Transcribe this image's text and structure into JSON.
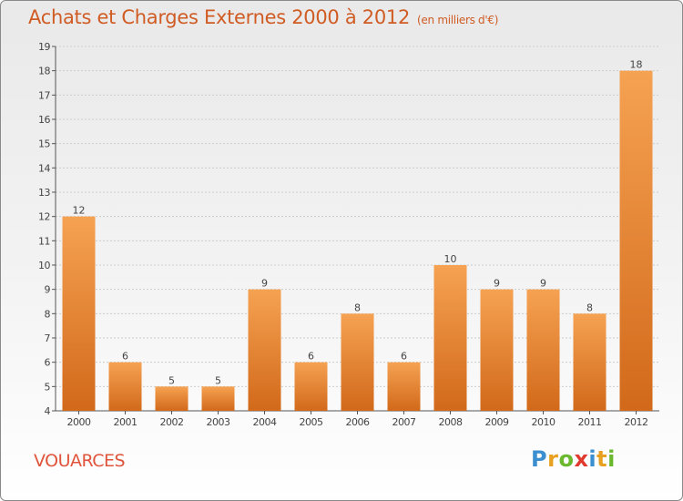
{
  "header": {
    "title": "Achats et Charges Externes 2000 à 2012",
    "unit": "(en milliers d'€)"
  },
  "commune": "VOUARCES",
  "logo": {
    "letters": [
      "P",
      "r",
      "o",
      "x",
      "i",
      "t",
      "i"
    ],
    "colors": [
      "#3b8fd0",
      "#e8a020",
      "#6ab82e",
      "#e03a2e",
      "#3b8fd0",
      "#e8a020",
      "#6ab82e"
    ]
  },
  "colors": {
    "bar_top": "#f5a252",
    "bar_bottom": "#d2691a",
    "grid": "#cccccc",
    "axis": "#555555"
  },
  "chart_data": {
    "type": "bar",
    "title": "Achats et Charges Externes 2000 à 2012",
    "subtitle": "(en milliers d'€)",
    "categories": [
      "2000",
      "2001",
      "2002",
      "2003",
      "2004",
      "2005",
      "2006",
      "2007",
      "2008",
      "2009",
      "2010",
      "2011",
      "2012"
    ],
    "values": [
      12,
      6,
      5,
      5,
      9,
      6,
      8,
      6,
      10,
      9,
      9,
      8,
      18
    ],
    "ylim": [
      4,
      19
    ],
    "yticks": [
      4,
      5,
      6,
      7,
      8,
      9,
      10,
      11,
      12,
      13,
      14,
      15,
      16,
      17,
      18,
      19
    ],
    "grid": true,
    "xlabel": "",
    "ylabel": ""
  }
}
